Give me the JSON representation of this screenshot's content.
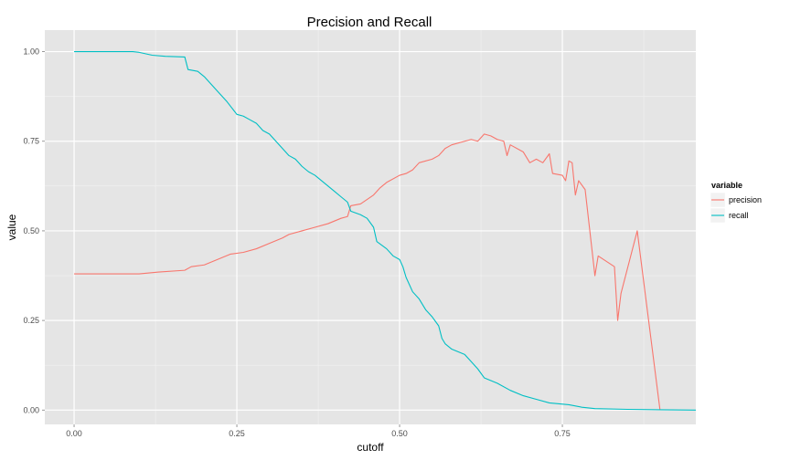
{
  "chart_data": {
    "type": "line",
    "title": "Precision and Recall",
    "xlabel": "cutoff",
    "ylabel": "value",
    "xlim": [
      -0.045,
      0.955
    ],
    "ylim": [
      -0.04,
      1.06
    ],
    "x_ticks": [
      {
        "value": 0.0,
        "label": "0.00"
      },
      {
        "value": 0.25,
        "label": "0.25"
      },
      {
        "value": 0.5,
        "label": "0.50"
      },
      {
        "value": 0.75,
        "label": "0.75"
      }
    ],
    "y_ticks": [
      {
        "value": 0.0,
        "label": "0.00"
      },
      {
        "value": 0.25,
        "label": "0.25"
      },
      {
        "value": 0.5,
        "label": "0.50"
      },
      {
        "value": 0.75,
        "label": "0.75"
      },
      {
        "value": 1.0,
        "label": "1.00"
      }
    ],
    "grid": true,
    "background": "#e5e5e5",
    "legend": {
      "title": "variable",
      "placement": "right"
    },
    "series": [
      {
        "name": "precision",
        "color": "#f8766d",
        "points": [
          [
            0.0,
            0.38
          ],
          [
            0.05,
            0.38
          ],
          [
            0.1,
            0.38
          ],
          [
            0.13,
            0.385
          ],
          [
            0.17,
            0.39
          ],
          [
            0.18,
            0.4
          ],
          [
            0.2,
            0.405
          ],
          [
            0.22,
            0.42
          ],
          [
            0.24,
            0.435
          ],
          [
            0.26,
            0.44
          ],
          [
            0.28,
            0.45
          ],
          [
            0.3,
            0.465
          ],
          [
            0.32,
            0.48
          ],
          [
            0.33,
            0.49
          ],
          [
            0.35,
            0.5
          ],
          [
            0.37,
            0.51
          ],
          [
            0.39,
            0.52
          ],
          [
            0.41,
            0.535
          ],
          [
            0.42,
            0.54
          ],
          [
            0.425,
            0.57
          ],
          [
            0.44,
            0.575
          ],
          [
            0.46,
            0.6
          ],
          [
            0.47,
            0.62
          ],
          [
            0.48,
            0.635
          ],
          [
            0.5,
            0.655
          ],
          [
            0.51,
            0.66
          ],
          [
            0.52,
            0.67
          ],
          [
            0.53,
            0.69
          ],
          [
            0.55,
            0.7
          ],
          [
            0.56,
            0.71
          ],
          [
            0.57,
            0.73
          ],
          [
            0.58,
            0.74
          ],
          [
            0.6,
            0.75
          ],
          [
            0.61,
            0.755
          ],
          [
            0.62,
            0.75
          ],
          [
            0.63,
            0.77
          ],
          [
            0.64,
            0.765
          ],
          [
            0.65,
            0.755
          ],
          [
            0.66,
            0.75
          ],
          [
            0.665,
            0.71
          ],
          [
            0.67,
            0.74
          ],
          [
            0.69,
            0.72
          ],
          [
            0.7,
            0.69
          ],
          [
            0.71,
            0.7
          ],
          [
            0.72,
            0.69
          ],
          [
            0.73,
            0.715
          ],
          [
            0.735,
            0.66
          ],
          [
            0.75,
            0.655
          ],
          [
            0.755,
            0.64
          ],
          [
            0.76,
            0.695
          ],
          [
            0.765,
            0.69
          ],
          [
            0.77,
            0.6
          ],
          [
            0.775,
            0.64
          ],
          [
            0.785,
            0.615
          ],
          [
            0.8,
            0.375
          ],
          [
            0.805,
            0.43
          ],
          [
            0.83,
            0.4
          ],
          [
            0.835,
            0.25
          ],
          [
            0.84,
            0.325
          ],
          [
            0.865,
            0.5
          ],
          [
            0.9,
            0.0
          ]
        ]
      },
      {
        "name": "recall",
        "color": "#00bfc4",
        "points": [
          [
            0.0,
            1.0
          ],
          [
            0.05,
            1.0
          ],
          [
            0.09,
            1.0
          ],
          [
            0.1,
            0.998
          ],
          [
            0.12,
            0.99
          ],
          [
            0.14,
            0.987
          ],
          [
            0.17,
            0.985
          ],
          [
            0.175,
            0.95
          ],
          [
            0.19,
            0.945
          ],
          [
            0.2,
            0.93
          ],
          [
            0.21,
            0.91
          ],
          [
            0.22,
            0.89
          ],
          [
            0.235,
            0.86
          ],
          [
            0.25,
            0.825
          ],
          [
            0.26,
            0.82
          ],
          [
            0.27,
            0.81
          ],
          [
            0.28,
            0.8
          ],
          [
            0.29,
            0.78
          ],
          [
            0.3,
            0.77
          ],
          [
            0.31,
            0.75
          ],
          [
            0.32,
            0.73
          ],
          [
            0.33,
            0.71
          ],
          [
            0.34,
            0.7
          ],
          [
            0.35,
            0.68
          ],
          [
            0.36,
            0.665
          ],
          [
            0.37,
            0.655
          ],
          [
            0.38,
            0.64
          ],
          [
            0.39,
            0.625
          ],
          [
            0.4,
            0.61
          ],
          [
            0.41,
            0.595
          ],
          [
            0.42,
            0.58
          ],
          [
            0.425,
            0.555
          ],
          [
            0.44,
            0.545
          ],
          [
            0.45,
            0.535
          ],
          [
            0.46,
            0.51
          ],
          [
            0.465,
            0.47
          ],
          [
            0.48,
            0.45
          ],
          [
            0.49,
            0.43
          ],
          [
            0.5,
            0.42
          ],
          [
            0.505,
            0.4
          ],
          [
            0.51,
            0.37
          ],
          [
            0.52,
            0.33
          ],
          [
            0.53,
            0.31
          ],
          [
            0.54,
            0.28
          ],
          [
            0.55,
            0.26
          ],
          [
            0.56,
            0.235
          ],
          [
            0.565,
            0.2
          ],
          [
            0.57,
            0.185
          ],
          [
            0.58,
            0.17
          ],
          [
            0.6,
            0.155
          ],
          [
            0.61,
            0.135
          ],
          [
            0.62,
            0.115
          ],
          [
            0.63,
            0.09
          ],
          [
            0.65,
            0.075
          ],
          [
            0.67,
            0.055
          ],
          [
            0.69,
            0.04
          ],
          [
            0.71,
            0.03
          ],
          [
            0.73,
            0.02
          ],
          [
            0.76,
            0.015
          ],
          [
            0.78,
            0.008
          ],
          [
            0.8,
            0.004
          ],
          [
            0.85,
            0.002
          ],
          [
            0.9,
            0.001
          ],
          [
            0.955,
            0.0
          ]
        ]
      }
    ]
  }
}
